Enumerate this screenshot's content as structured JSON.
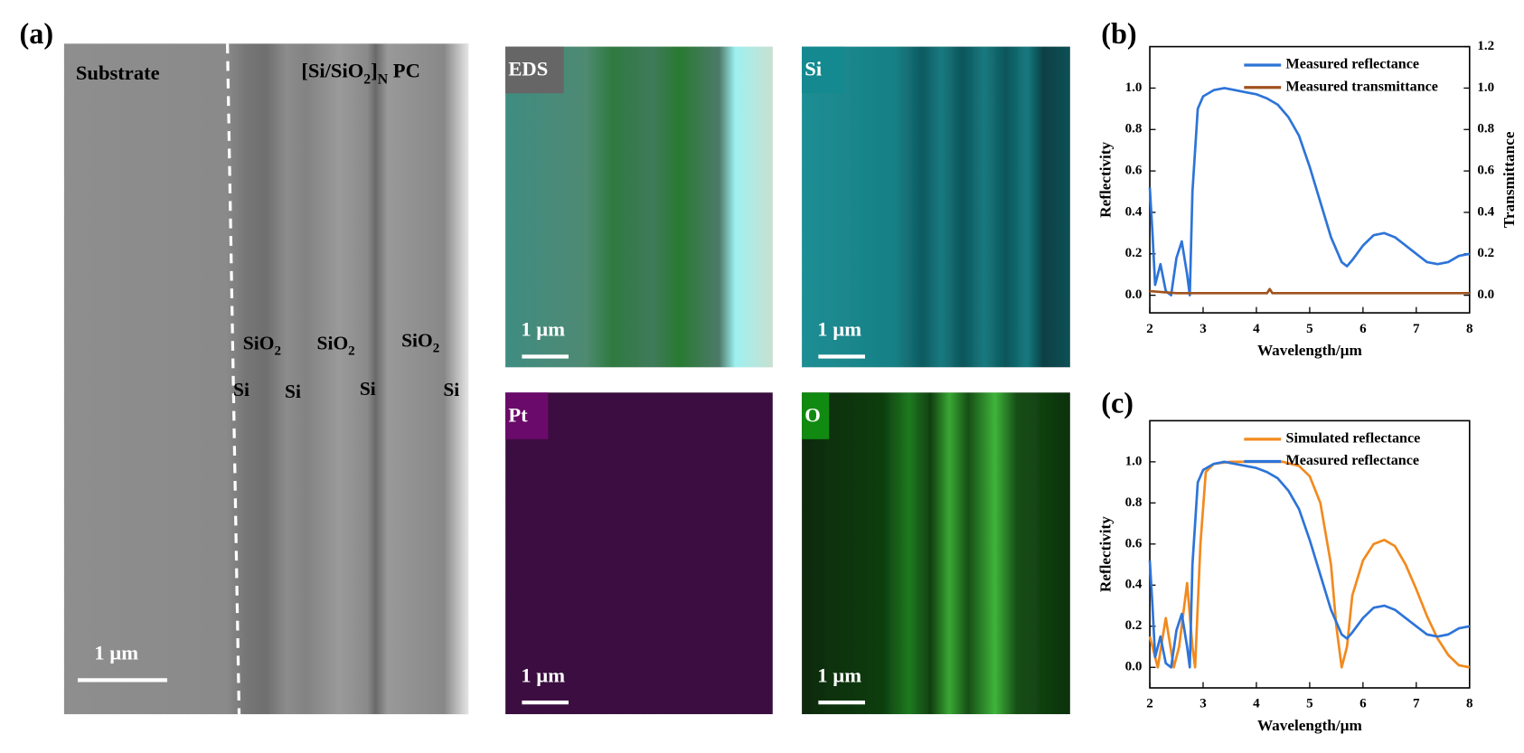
{
  "panels": {
    "a": "(a)",
    "b": "(b)",
    "c": "(c)"
  },
  "sem": {
    "substrate": "Substrate",
    "pc_label": [
      "[Si/SiO",
      "2",
      "]",
      "N",
      " PC"
    ],
    "sio2_labels": [
      [
        "SiO",
        "2"
      ],
      [
        "SiO",
        "2"
      ],
      [
        "SiO",
        "2"
      ]
    ],
    "si_labels": [
      "Si",
      "Si",
      "Si",
      "Si"
    ],
    "scale_bar": "1 µm"
  },
  "eds": [
    {
      "label": "EDS",
      "scale_bar": "1 µm"
    },
    {
      "label": "Si",
      "scale_bar": "1 µm"
    },
    {
      "label": "Pt",
      "scale_bar": "1 µm"
    },
    {
      "label": "O",
      "scale_bar": "1 µm"
    }
  ],
  "chart_data": [
    {
      "type": "line",
      "x_label": "Wavelength/µm",
      "y_label": "Reflectivity",
      "y2_label": "Transmittance",
      "xlim": [
        2,
        8
      ],
      "xticks": [
        2,
        3,
        4,
        5,
        6,
        7,
        8
      ],
      "ylim": [
        -0.085,
        1.2
      ],
      "yticks": [
        {
          "value": 0,
          "label": "0.0"
        },
        {
          "value": 0.2,
          "label": "0.2"
        },
        {
          "value": 0.4,
          "label": "0.4"
        },
        {
          "value": 0.6,
          "label": "0.6"
        },
        {
          "value": 0.8,
          "label": "0.8"
        },
        {
          "value": 1,
          "label": "1.0"
        }
      ],
      "y2lim": [
        -0.085,
        1.2
      ],
      "y2ticks": [
        {
          "value": 0,
          "label": "0.0"
        },
        {
          "value": 0.2,
          "label": "0.2"
        },
        {
          "value": 0.4,
          "label": "0.4"
        },
        {
          "value": 0.6,
          "label": "0.6"
        },
        {
          "value": 0.8,
          "label": "0.8"
        },
        {
          "value": 1,
          "label": "1.0"
        },
        {
          "value": 1.2,
          "label": "1.2"
        }
      ],
      "legend": "upper right",
      "series": [
        {
          "name": "Measured reflectance",
          "color": "#2d74d8",
          "x": [
            2.0,
            2.05,
            2.1,
            2.2,
            2.3,
            2.4,
            2.5,
            2.6,
            2.7,
            2.75,
            2.8,
            2.9,
            3.0,
            3.2,
            3.4,
            3.6,
            3.8,
            4.0,
            4.2,
            4.4,
            4.6,
            4.8,
            5.0,
            5.2,
            5.4,
            5.6,
            5.7,
            5.8,
            6.0,
            6.2,
            6.4,
            6.6,
            6.8,
            7.0,
            7.2,
            7.4,
            7.6,
            7.8,
            8.0
          ],
          "values": [
            0.52,
            0.3,
            0.05,
            0.15,
            0.02,
            0.0,
            0.18,
            0.26,
            0.1,
            0.0,
            0.5,
            0.9,
            0.96,
            0.99,
            1.0,
            0.99,
            0.98,
            0.97,
            0.95,
            0.92,
            0.86,
            0.77,
            0.62,
            0.45,
            0.28,
            0.16,
            0.14,
            0.17,
            0.24,
            0.29,
            0.3,
            0.28,
            0.24,
            0.2,
            0.16,
            0.15,
            0.16,
            0.19,
            0.2
          ]
        },
        {
          "name": "Measured transmittance",
          "color": "#a0521e",
          "axis": "y2",
          "x": [
            2.0,
            2.5,
            3.0,
            3.5,
            4.0,
            4.2,
            4.25,
            4.3,
            4.5,
            5.0,
            5.5,
            6.0,
            6.5,
            7.0,
            7.5,
            8.0
          ],
          "values": [
            0.02,
            0.01,
            0.01,
            0.01,
            0.01,
            0.01,
            0.03,
            0.01,
            0.01,
            0.01,
            0.01,
            0.01,
            0.01,
            0.01,
            0.01,
            0.01
          ]
        }
      ]
    },
    {
      "type": "line",
      "x_label": "Wavelength/µm",
      "y_label": "Reflectivity",
      "xlim": [
        2,
        8
      ],
      "xticks": [
        2,
        3,
        4,
        5,
        6,
        7,
        8
      ],
      "ylim": [
        -0.1,
        1.2
      ],
      "yticks": [
        {
          "value": 0,
          "label": "0.0"
        },
        {
          "value": 0.2,
          "label": "0.2"
        },
        {
          "value": 0.4,
          "label": "0.4"
        },
        {
          "value": 0.6,
          "label": "0.6"
        },
        {
          "value": 0.8,
          "label": "0.8"
        },
        {
          "value": 1,
          "label": "1.0"
        }
      ],
      "legend": "upper right",
      "series": [
        {
          "name": "Simulated reflectance",
          "color": "#f28a1e",
          "x": [
            2.0,
            2.1,
            2.15,
            2.3,
            2.45,
            2.55,
            2.7,
            2.8,
            2.85,
            2.95,
            3.05,
            3.2,
            3.5,
            4.0,
            4.5,
            4.8,
            5.0,
            5.2,
            5.4,
            5.5,
            5.6,
            5.7,
            5.8,
            6.0,
            6.2,
            6.4,
            6.6,
            6.8,
            7.0,
            7.2,
            7.4,
            7.6,
            7.8,
            8.0
          ],
          "values": [
            0.15,
            0.05,
            0.0,
            0.24,
            0.0,
            0.1,
            0.41,
            0.1,
            0.0,
            0.6,
            0.95,
            0.99,
            1.0,
            1.0,
            1.0,
            0.98,
            0.93,
            0.8,
            0.5,
            0.2,
            0.0,
            0.1,
            0.35,
            0.52,
            0.6,
            0.62,
            0.59,
            0.5,
            0.38,
            0.25,
            0.14,
            0.06,
            0.01,
            0.0
          ]
        },
        {
          "name": "Measured reflectance",
          "color": "#2d74d8",
          "x": [
            2.0,
            2.05,
            2.1,
            2.2,
            2.3,
            2.4,
            2.5,
            2.6,
            2.7,
            2.75,
            2.8,
            2.9,
            3.0,
            3.2,
            3.4,
            3.6,
            3.8,
            4.0,
            4.2,
            4.4,
            4.6,
            4.8,
            5.0,
            5.2,
            5.4,
            5.6,
            5.7,
            5.8,
            6.0,
            6.2,
            6.4,
            6.6,
            6.8,
            7.0,
            7.2,
            7.4,
            7.6,
            7.8,
            8.0
          ],
          "values": [
            0.52,
            0.3,
            0.05,
            0.15,
            0.02,
            0.0,
            0.18,
            0.26,
            0.1,
            0.0,
            0.5,
            0.9,
            0.96,
            0.99,
            1.0,
            0.99,
            0.98,
            0.97,
            0.95,
            0.92,
            0.86,
            0.77,
            0.62,
            0.45,
            0.28,
            0.16,
            0.14,
            0.17,
            0.24,
            0.29,
            0.3,
            0.28,
            0.24,
            0.2,
            0.16,
            0.15,
            0.16,
            0.19,
            0.2
          ]
        }
      ]
    }
  ]
}
